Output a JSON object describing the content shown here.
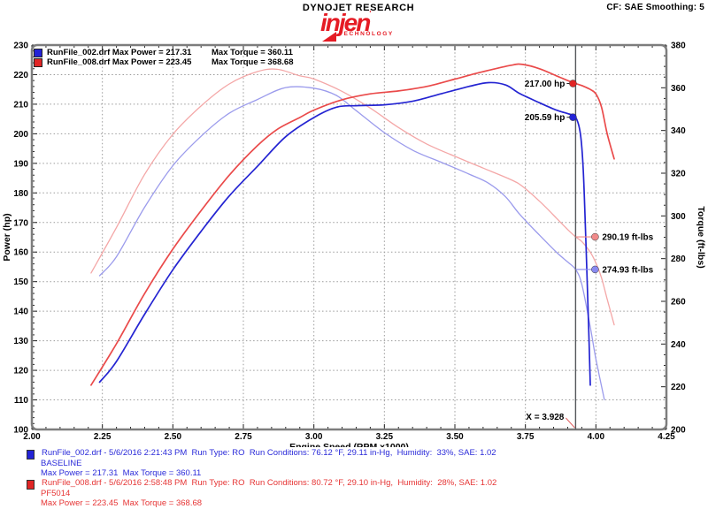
{
  "header": {
    "title": "DYNOJET RESEARCH",
    "cf_label": "CF: SAE  Smoothing: 5",
    "logo": {
      "word": "injen",
      "tm": "'",
      "sub": "TECHNOLOGY",
      "color": "#e51b24"
    }
  },
  "legend": {
    "rows": [
      {
        "left": "RunFile_002.drf Max Power = 217.31",
        "right": "Max Torque = 360.11",
        "color": "#2323d6"
      },
      {
        "left": "RunFile_008.drf Max Power = 223.45",
        "right": "Max Torque = 368.68",
        "color": "#e02525"
      }
    ]
  },
  "annotations": [
    {
      "color": "#2b2bd9",
      "swatch": "#2323d6",
      "line1": "RunFile_002.drf - 5/6/2016 2:21:43 PM  Run Type: RO  Run Conditions: 76.12 °F, 29.11 in-Hg,  Humidity:  33%, SAE: 1.02",
      "line2": "BASELINE",
      "line3": "Max Power = 217.31  Max Torque = 360.11"
    },
    {
      "color": "#e63535",
      "swatch": "#e02525",
      "line1": "RunFile_008.drf - 5/6/2016 2:58:48 PM  Run Type: RO  Run Conditions: 80.72 °F, 29.10 in-Hg,  Humidity:  28%, SAE: 1.02",
      "line2": "PF5014",
      "line3": "Max Power = 223.45  Max Torque = 368.68"
    }
  ],
  "chart_data": {
    "type": "line",
    "title": "DYNOJET RESEARCH",
    "x_axis": {
      "label": "Engine Speed (RPM x1000)",
      "min": 2.0,
      "max": 4.25,
      "major_step": 0.25,
      "minor_step": 0.05
    },
    "y_left": {
      "label": "Power (hp)",
      "min": 100,
      "max": 230,
      "major_step": 10,
      "minor_step": 2
    },
    "y_right": {
      "label": "Torque (ft-lbs)",
      "min": 200,
      "max": 380,
      "major_step": 20,
      "minor_step": 5
    },
    "grid": true,
    "legend_position": "top-left",
    "cursor": {
      "x": 3.928,
      "label": "X = 3.928"
    },
    "callouts": [
      {
        "label": "217.00 hp",
        "axis": "left",
        "value": 217.0,
        "side": "left",
        "color": "#e02525"
      },
      {
        "label": "205.59 hp",
        "axis": "left",
        "value": 205.59,
        "side": "left",
        "color": "#2323d6"
      },
      {
        "label": "290.19 ft-lbs",
        "axis": "right",
        "value": 290.19,
        "side": "right",
        "color": "#f08a8a"
      },
      {
        "label": "274.93 ft-lbs",
        "axis": "right",
        "value": 274.93,
        "side": "right",
        "color": "#8a8aef"
      }
    ],
    "series": [
      {
        "name": "RunFile_002.drf Torque",
        "axis": "right",
        "color": "#9b9bec",
        "width": 1.3,
        "max": 360.11,
        "points": [
          [
            2.24,
            272.0
          ],
          [
            2.3,
            280.9
          ],
          [
            2.4,
            304.1
          ],
          [
            2.5,
            323.5
          ],
          [
            2.6,
            337.3
          ],
          [
            2.7,
            348.1
          ],
          [
            2.8,
            354.5
          ],
          [
            2.9,
            360.1
          ],
          [
            3.0,
            359.8
          ],
          [
            3.08,
            356.4
          ],
          [
            3.15,
            349.3
          ],
          [
            3.25,
            339.0
          ],
          [
            3.35,
            330.8
          ],
          [
            3.45,
            325.2
          ],
          [
            3.55,
            319.6
          ],
          [
            3.62,
            315.3
          ],
          [
            3.68,
            308.9
          ],
          [
            3.73,
            300.7
          ],
          [
            3.8,
            291.0
          ],
          [
            3.86,
            283.0
          ],
          [
            3.9,
            278.4
          ],
          [
            3.928,
            274.93
          ],
          [
            3.95,
            268.0
          ],
          [
            3.98,
            248.0
          ],
          [
            4.0,
            233.0
          ],
          [
            4.03,
            214.0
          ]
        ]
      },
      {
        "name": "RunFile_008.drf Torque",
        "axis": "right",
        "color": "#f4a7a7",
        "width": 1.3,
        "max": 368.68,
        "points": [
          [
            2.21,
            273.3
          ],
          [
            2.3,
            294.6
          ],
          [
            2.4,
            319.5
          ],
          [
            2.5,
            338.2
          ],
          [
            2.6,
            351.5
          ],
          [
            2.7,
            361.8
          ],
          [
            2.8,
            367.6
          ],
          [
            2.87,
            368.68
          ],
          [
            2.95,
            365.6
          ],
          [
            3.0,
            364.1
          ],
          [
            3.1,
            358.3
          ],
          [
            3.2,
            350.5
          ],
          [
            3.3,
            341.4
          ],
          [
            3.4,
            333.7
          ],
          [
            3.5,
            327.9
          ],
          [
            3.6,
            322.4
          ],
          [
            3.7,
            316.9
          ],
          [
            3.74,
            313.8
          ],
          [
            3.8,
            306.9
          ],
          [
            3.86,
            299.0
          ],
          [
            3.9,
            293.6
          ],
          [
            3.928,
            290.19
          ],
          [
            3.95,
            288.0
          ],
          [
            3.98,
            283.0
          ],
          [
            4.0,
            278.0
          ],
          [
            4.02,
            271.0
          ],
          [
            4.04,
            261.0
          ],
          [
            4.065,
            249.0
          ]
        ]
      },
      {
        "name": "RunFile_002.drf Power",
        "axis": "left",
        "color": "#2424d2",
        "width": 1.7,
        "max": 217.31,
        "points": [
          [
            2.24,
            116
          ],
          [
            2.3,
            123
          ],
          [
            2.4,
            139
          ],
          [
            2.5,
            154
          ],
          [
            2.6,
            167
          ],
          [
            2.7,
            179
          ],
          [
            2.8,
            189
          ],
          [
            2.9,
            199
          ],
          [
            3.0,
            205.5
          ],
          [
            3.08,
            209.0
          ],
          [
            3.15,
            209.5
          ],
          [
            3.25,
            209.8
          ],
          [
            3.35,
            211.0
          ],
          [
            3.45,
            213.5
          ],
          [
            3.55,
            216.0
          ],
          [
            3.62,
            217.31
          ],
          [
            3.68,
            216.5
          ],
          [
            3.73,
            213.6
          ],
          [
            3.8,
            210.5
          ],
          [
            3.86,
            208.0
          ],
          [
            3.9,
            206.8
          ],
          [
            3.928,
            205.59
          ],
          [
            3.945,
            200.0
          ],
          [
            3.955,
            188.0
          ],
          [
            3.965,
            162.0
          ],
          [
            3.975,
            132.0
          ],
          [
            3.98,
            115.0
          ]
        ]
      },
      {
        "name": "RunFile_008.drf Power",
        "axis": "left",
        "color": "#ea4a4a",
        "width": 1.7,
        "max": 223.45,
        "points": [
          [
            2.21,
            115
          ],
          [
            2.3,
            129
          ],
          [
            2.4,
            146
          ],
          [
            2.5,
            161
          ],
          [
            2.6,
            174
          ],
          [
            2.7,
            186
          ],
          [
            2.8,
            196
          ],
          [
            2.87,
            201.5
          ],
          [
            2.95,
            205.5
          ],
          [
            3.0,
            208.0
          ],
          [
            3.1,
            211.5
          ],
          [
            3.2,
            213.5
          ],
          [
            3.3,
            214.5
          ],
          [
            3.4,
            216.0
          ],
          [
            3.5,
            218.5
          ],
          [
            3.6,
            221.0
          ],
          [
            3.7,
            223.2
          ],
          [
            3.74,
            223.45
          ],
          [
            3.8,
            222.0
          ],
          [
            3.86,
            219.6
          ],
          [
            3.9,
            218.0
          ],
          [
            3.928,
            217.0
          ],
          [
            3.95,
            216.3
          ],
          [
            3.98,
            215.0
          ],
          [
            4.0,
            213.5
          ],
          [
            4.02,
            209.0
          ],
          [
            4.04,
            200.0
          ],
          [
            4.065,
            191.5
          ]
        ]
      }
    ]
  }
}
